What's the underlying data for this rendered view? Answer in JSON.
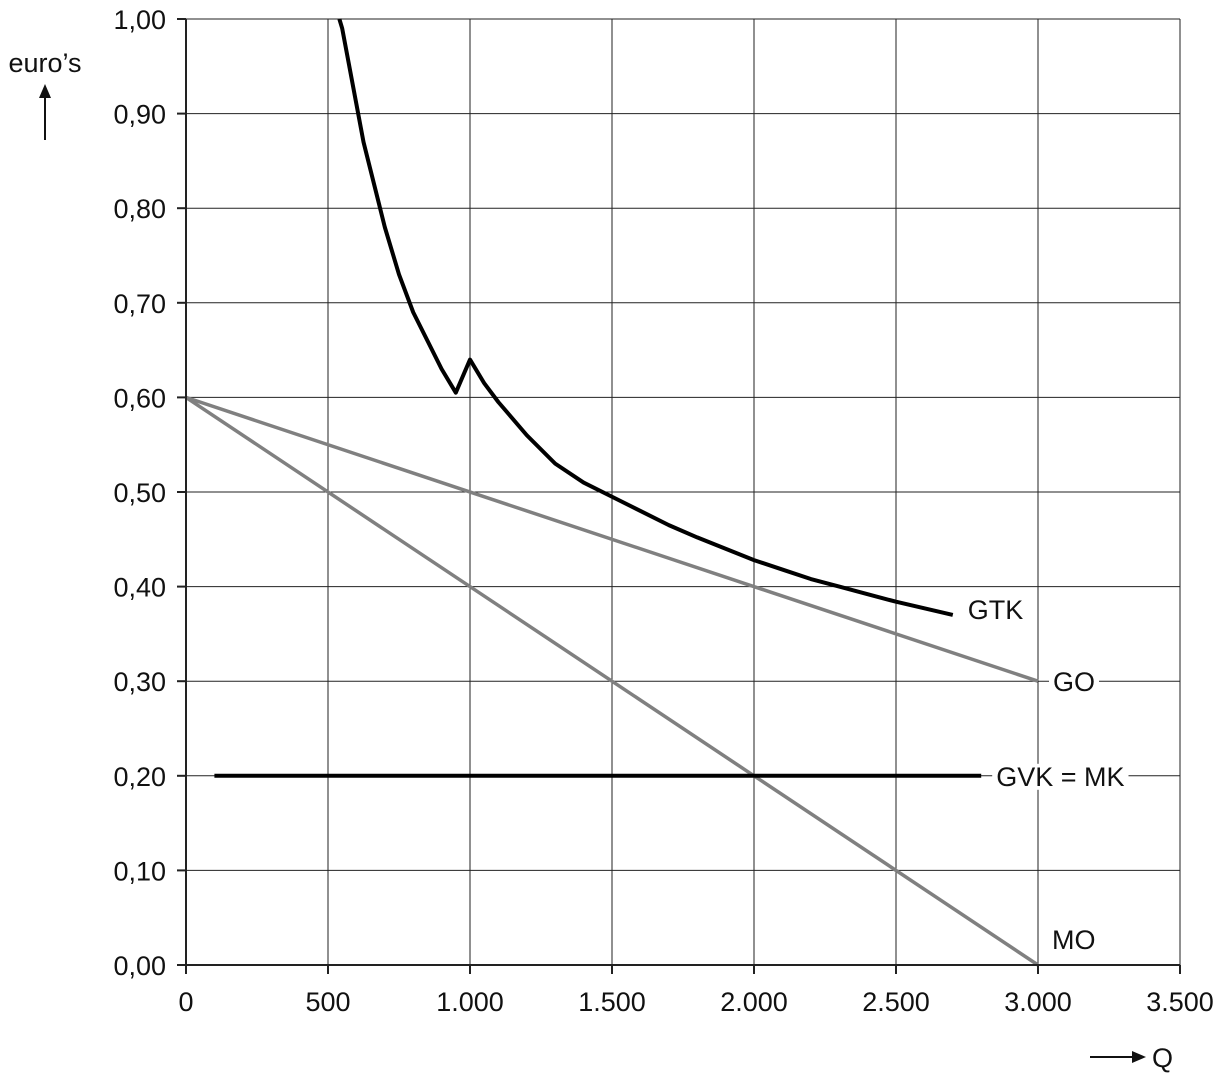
{
  "chart_data": {
    "type": "line",
    "title": "",
    "ylabel": "euro’s",
    "xlabel": "Q",
    "xlim": [
      0,
      3500
    ],
    "ylim": [
      0,
      1.0
    ],
    "grid": true,
    "x_ticks": [
      0,
      500,
      1000,
      1500,
      2000,
      2500,
      3000,
      3500
    ],
    "x_tick_labels": [
      "0",
      "500",
      "1.000",
      "1.500",
      "2.000",
      "2.500",
      "3.000",
      "3.500"
    ],
    "y_ticks": [
      0,
      0.1,
      0.2,
      0.3,
      0.4,
      0.5,
      0.6,
      0.7,
      0.8,
      0.9,
      1.0
    ],
    "y_tick_labels": [
      "0,00",
      "0,10",
      "0,20",
      "0,30",
      "0,40",
      "0,50",
      "0,60",
      "0,70",
      "0,80",
      "0,90",
      "1,00"
    ],
    "series": [
      {
        "name": "GTK",
        "color": "#000000",
        "x": [
          540,
          550,
          575,
          600,
          625,
          650,
          700,
          750,
          800,
          850,
          900,
          950,
          1000,
          1050,
          1100,
          1200,
          1300,
          1400,
          1500,
          1600,
          1700,
          1800,
          1900,
          2000,
          2100,
          2200,
          2300,
          2400,
          2500,
          2600,
          2700
        ],
        "y": [
          1.0,
          0.99,
          0.95,
          0.91,
          0.87,
          0.84,
          0.78,
          0.73,
          0.69,
          0.66,
          0.63,
          0.605,
          0.64,
          0.615,
          0.595,
          0.56,
          0.53,
          0.51,
          0.495,
          0.48,
          0.465,
          0.452,
          0.44,
          0.428,
          0.418,
          0.408,
          0.4,
          0.392,
          0.384,
          0.377,
          0.37
        ]
      },
      {
        "name": "GO",
        "color": "#808080",
        "x": [
          0,
          3000
        ],
        "y": [
          0.6,
          0.3
        ]
      },
      {
        "name": "MO",
        "color": "#808080",
        "x": [
          0,
          3000
        ],
        "y": [
          0.6,
          0.0
        ]
      },
      {
        "name": "GVK = MK",
        "color": "#000000",
        "x": [
          100,
          2800
        ],
        "y": [
          0.2,
          0.2
        ]
      }
    ]
  }
}
